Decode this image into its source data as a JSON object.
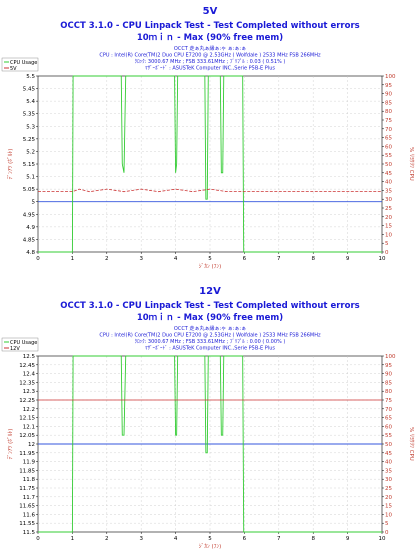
{
  "chart_data": [
    {
      "type": "line",
      "title": "5V",
      "subtitle": "OCCT 3.1.0 - CPU Linpack Test - Test Completed without errors",
      "subtitle2": "10ｍｉｎ - Max (90% free mem)",
      "info_lines": [
        "OCCT 走ぁ丸ぁ縁ぁ:ゃ ぁ:ぁ:ぁ",
        "CPU : Intel(R) Core(TM)2 Duo CPU E7200 @ 2.53GHz ( Wolfdale ) 2533 MHz FSB 266MHz",
        "ｸﾛｯｸ: 3000.67 MHz ; FSB 333.61MHz ; ﾌﾞﾘﾌﾟﾙ : 0.03 ( 0.51% )",
        "ﾏｻﾞｰﾎﾞｰﾄﾞ : ASUSTeK Computer INC.,Serie P5B-E Plus"
      ],
      "xlabel": "ｼﾞｶﾝ (ﾌﾝ)",
      "ylabel_left": "ﾃﾞﾝｱﾂ (ﾎﾞﾙﾄ)",
      "ylabel_right": "% ﾘﾖｳﾘﾂ CPU",
      "x_ticks": [
        0,
        1,
        2,
        3,
        4,
        5,
        6,
        7,
        8,
        9,
        10
      ],
      "xlim": [
        0,
        10
      ],
      "ylim": [
        4.8,
        5.5
      ],
      "y_ticks": [
        "5.5",
        "5.45",
        "5.4",
        "5.35",
        "5.3",
        "5.25",
        "5.2",
        "5.15",
        "5.1",
        "5.05",
        "5",
        "4.95",
        "4.9",
        "4.85",
        "4.8"
      ],
      "y2lim": [
        0,
        100
      ],
      "y2_ticks": [
        "100",
        "95",
        "90",
        "85",
        "80",
        "75",
        "70",
        "65",
        "60",
        "55",
        "50",
        "45",
        "40",
        "35",
        "30",
        "25",
        "20",
        "15",
        "10",
        "5",
        "0"
      ],
      "legend": [
        "CPU Usage",
        "5V"
      ],
      "legend_position": "top-left",
      "grid": true,
      "colors": {
        "cpu": "#33cc33",
        "voltage": "#cc3333",
        "ref": "#3355dd",
        "title": "#1a1ad6",
        "ticks_right": "#c0392b"
      },
      "series": [
        {
          "name": "CPU Usage",
          "axis": "right",
          "x": [
            0,
            1.0,
            1.02,
            1.05,
            1.08,
            1.1,
            2.42,
            2.45,
            2.5,
            2.55,
            2.6,
            3.97,
            4.0,
            4.03,
            4.06,
            4.1,
            4.85,
            4.88,
            4.92,
            4.95,
            5.3,
            5.33,
            5.37,
            5.4,
            5.95,
            5.98,
            6.02,
            6.05,
            10
          ],
          "y": [
            0,
            0,
            100,
            100,
            100,
            100,
            100,
            50,
            45,
            100,
            100,
            100,
            45,
            50,
            100,
            100,
            100,
            30,
            30,
            100,
            100,
            45,
            45,
            100,
            100,
            0,
            0,
            0,
            0
          ]
        },
        {
          "name": "5V",
          "axis": "left",
          "x": [
            0,
            1.0,
            1.2,
            1.5,
            2.0,
            2.5,
            3.0,
            3.5,
            4.0,
            4.5,
            5.0,
            5.5,
            6.0,
            6.5,
            10
          ],
          "y": [
            5.04,
            5.04,
            5.05,
            5.04,
            5.05,
            5.04,
            5.05,
            5.04,
            5.05,
            5.04,
            5.05,
            5.04,
            5.04,
            5.04,
            5.04
          ]
        }
      ],
      "reference_line": 5.0
    },
    {
      "type": "line",
      "title": "12V",
      "subtitle": "OCCT 3.1.0 - CPU Linpack Test - Test Completed without errors",
      "subtitle2": "10ｍｉｎ - Max (90% free mem)",
      "info_lines": [
        "OCCT 走ぁ丸ぁ縁ぁ:ゃ ぁ:ぁ:ぁ",
        "CPU : Intel(R) Core(TM)2 Duo CPU E7200 @ 2.53GHz ( Wolfdale ) 2533 MHz FSB 266MHz",
        "ｸﾛｯｸ: 3000.67 MHz ; FSB 333.61MHz ; ﾌﾞﾘﾌﾟﾙ : 0.00 ( 0.00% )",
        "ﾏｻﾞｰﾎﾞｰﾄﾞ : ASUSTeK Computer INC.,Serie P5B-E Plus"
      ],
      "xlabel": "ｼﾞｶﾝ (ﾌﾝ)",
      "ylabel_left": "ﾃﾞﾝｱﾂ (ﾎﾞﾙﾄ)",
      "ylabel_right": "% ﾘﾖｳﾘﾂ CPU",
      "x_ticks": [
        0,
        1,
        2,
        3,
        4,
        5,
        6,
        7,
        8,
        9,
        10
      ],
      "xlim": [
        0,
        10
      ],
      "ylim": [
        11.5,
        12.5
      ],
      "y_ticks": [
        "12.5",
        "12.45",
        "12.4",
        "12.35",
        "12.3",
        "12.25",
        "12.2",
        "12.15",
        "12.1",
        "12.05",
        "12",
        "11.95",
        "11.9",
        "11.85",
        "11.8",
        "11.75",
        "11.7",
        "11.65",
        "11.6",
        "11.55",
        "11.5"
      ],
      "y2lim": [
        0,
        100
      ],
      "y2_ticks": [
        "100",
        "95",
        "90",
        "85",
        "80",
        "75",
        "70",
        "65",
        "60",
        "55",
        "50",
        "45",
        "40",
        "35",
        "30",
        "25",
        "20",
        "15",
        "10",
        "5",
        "0"
      ],
      "legend": [
        "CPU Usage",
        "12V"
      ],
      "legend_position": "top-left",
      "grid": true,
      "colors": {
        "cpu": "#33cc33",
        "voltage": "#cc3333",
        "ref": "#3355dd",
        "title": "#1a1ad6",
        "ticks_right": "#c0392b"
      },
      "series": [
        {
          "name": "CPU Usage",
          "axis": "right",
          "x": [
            0,
            1.0,
            1.02,
            1.05,
            1.08,
            1.1,
            2.42,
            2.45,
            2.5,
            2.55,
            2.6,
            3.97,
            4.0,
            4.03,
            4.06,
            4.1,
            4.85,
            4.88,
            4.92,
            4.95,
            5.3,
            5.33,
            5.37,
            5.4,
            5.95,
            5.98,
            6.02,
            6.05,
            10
          ],
          "y": [
            0,
            0,
            100,
            100,
            100,
            100,
            100,
            55,
            55,
            100,
            100,
            100,
            55,
            55,
            100,
            100,
            100,
            45,
            45,
            100,
            100,
            55,
            55,
            100,
            100,
            0,
            0,
            0,
            0
          ]
        },
        {
          "name": "12V",
          "axis": "left",
          "x": [
            0,
            10
          ],
          "y": [
            12.25,
            12.25
          ]
        }
      ],
      "reference_line": 12.0
    }
  ]
}
